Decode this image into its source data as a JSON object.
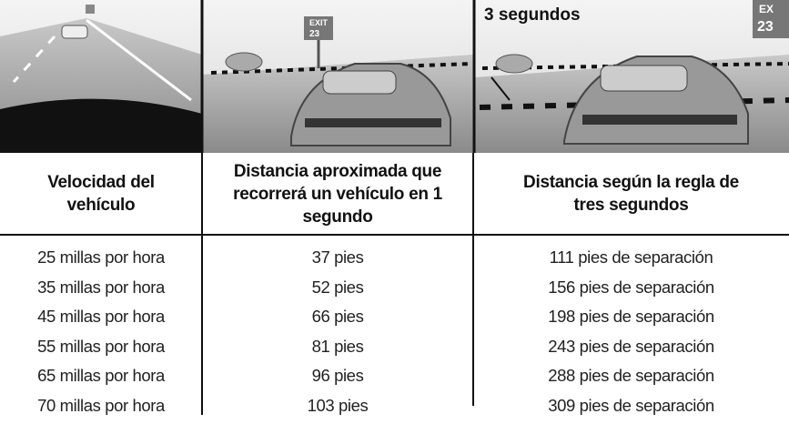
{
  "scenes": {
    "middle": {
      "sign": [
        "EXIT",
        "23"
      ]
    },
    "right": {
      "caption": "3 segundos",
      "sign": [
        "EX",
        "23"
      ]
    }
  },
  "table": {
    "header": [
      "Velocidad del vehículo",
      "Distancia aproximada que recorrerá un vehículo en 1 segundo",
      "Distancia según la regla de tres segundos"
    ],
    "rows": [
      [
        "25 millas por hora",
        "37 pies",
        "111 pies de separación"
      ],
      [
        "35 millas por hora",
        "52 pies",
        "156 pies de separación"
      ],
      [
        "45 millas por hora",
        "66 pies",
        "198 pies de separación"
      ],
      [
        "55 millas por hora",
        "81 pies",
        "243 pies de separación"
      ],
      [
        "65 millas por hora",
        "96 pies",
        "288 pies de separación"
      ],
      [
        "70 millas por hora",
        "103 pies",
        "309 pies de separación"
      ]
    ]
  }
}
